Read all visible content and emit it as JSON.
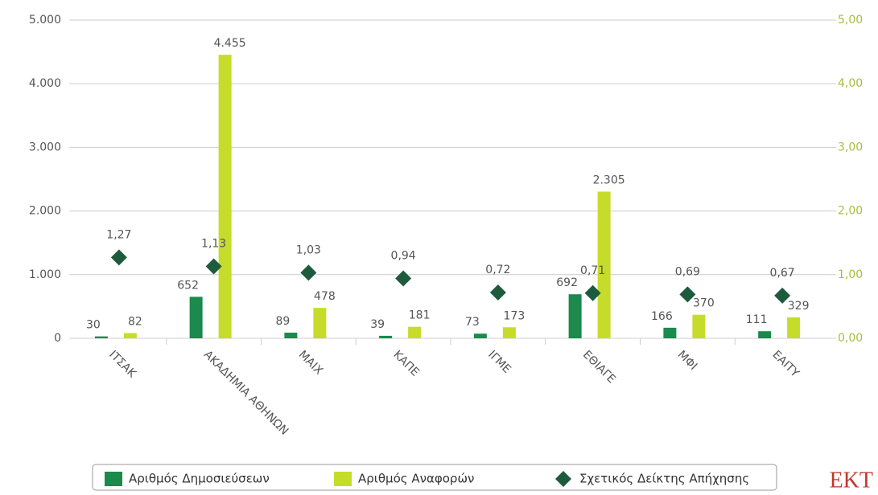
{
  "chart_data": {
    "type": "bar",
    "categories": [
      "ΙΤΣΑΚ",
      "ΑΚΑΔΗΜΙΑ ΑΘΗΝΩΝ",
      "ΜΑΙΧ",
      "ΚΑΠΕ",
      "ΙΓΜΕ",
      "ΕΘΙΑΓΕ",
      "ΜΦΙ",
      "ΕΑΙΤΥ"
    ],
    "series": [
      {
        "name": "Αριθμός Δημοσιεύσεων",
        "color": "#1b8a4c",
        "values": [
          30,
          652,
          89,
          39,
          73,
          692,
          166,
          111
        ]
      },
      {
        "name": "Αριθμός Αναφορών",
        "color": "#c6dc2a",
        "values": [
          82,
          4455,
          478,
          181,
          173,
          2305,
          370,
          329
        ],
        "value_labels": [
          "82",
          "4.455",
          "478",
          "181",
          "173",
          "2.305",
          "370",
          "329"
        ]
      },
      {
        "name": "Σχετικός Δείκτης Απήχησης",
        "color": "#1e5b3d",
        "axis": "y2",
        "type": "scatter",
        "values": [
          1.27,
          1.13,
          1.03,
          0.94,
          0.72,
          0.71,
          0.69,
          0.67
        ],
        "value_labels": [
          "1,27",
          "1,13",
          "1,03",
          "0,94",
          "0,72",
          "0,71",
          "0,69",
          "0,67"
        ]
      }
    ],
    "ylim": [
      0,
      5000
    ],
    "yticks": [
      0,
      {
        "value": 1000,
        "label": "1.000"
      },
      {
        "value": 2000,
        "label": "2.000"
      },
      {
        "value": 3000,
        "label": "3.000"
      },
      {
        "value": 4000,
        "label": "4.000"
      },
      {
        "value": 5000,
        "label": "5.000"
      }
    ],
    "y2lim": [
      0,
      5
    ],
    "y2ticks": [
      {
        "value": 0,
        "label": "0,00"
      },
      {
        "value": 1,
        "label": "1,00"
      },
      {
        "value": 2,
        "label": "2,00"
      },
      {
        "value": 3,
        "label": "3,00"
      },
      {
        "value": 4,
        "label": "4,00"
      },
      {
        "value": 5,
        "label": "5,00"
      }
    ],
    "grid": true,
    "legend": "bottom",
    "logo": "EKT"
  }
}
